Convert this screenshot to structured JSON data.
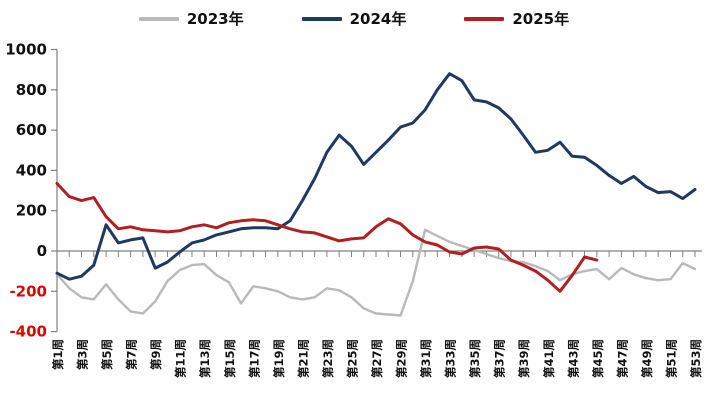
{
  "legend": {
    "items": [
      {
        "label": "2023年",
        "color": "#b9b9b9"
      },
      {
        "label": "2024年",
        "color": "#1f3864"
      },
      {
        "label": "2025年",
        "color": "#b02020"
      }
    ]
  },
  "chart_data": {
    "type": "line",
    "title": "",
    "xlabel": "",
    "ylabel": "",
    "x_unit": "week",
    "x_count": 53,
    "x_tick_labels": [
      "第1周",
      "第3周",
      "第5周",
      "第7周",
      "第9周",
      "第11周",
      "第13周",
      "第15周",
      "第17周",
      "第19周",
      "第21周",
      "第23周",
      "第25周",
      "第27周",
      "第29周",
      "第31周",
      "第33周",
      "第35周",
      "第37周",
      "第39周",
      "第41周",
      "第43周",
      "第45周",
      "第47周",
      "第49周",
      "第51周",
      "第53周"
    ],
    "x_tick_step": 2,
    "ylim": [
      -400,
      1000
    ],
    "y_tick_step": 200,
    "y_tick_labels": [
      "-400",
      "-200",
      "0",
      "200",
      "400",
      "600",
      "800",
      "1000"
    ],
    "grid": false,
    "legend_position": "top",
    "axis_color": "#808080",
    "tick_label_color": "#111111",
    "negative_tick_label_color": "#e00000",
    "series": [
      {
        "name": "2023年",
        "color": "#b9b9b9",
        "width": 2.4,
        "values": [
          -115,
          -185,
          -230,
          -240,
          -165,
          -240,
          -300,
          -310,
          -250,
          -150,
          -95,
          -70,
          -65,
          -120,
          -155,
          -260,
          -175,
          -185,
          -200,
          -230,
          -240,
          -230,
          -185,
          -195,
          -230,
          -285,
          -310,
          -315,
          -320,
          -150,
          105,
          75,
          45,
          25,
          5,
          -15,
          -35,
          -50,
          -55,
          -75,
          -100,
          -145,
          -115,
          -100,
          -90,
          -140,
          -85,
          -115,
          -135,
          -145,
          -140,
          -60,
          -90
        ]
      },
      {
        "name": "2024年",
        "color": "#1f3864",
        "width": 3,
        "values": [
          -110,
          -140,
          -125,
          -70,
          130,
          40,
          55,
          65,
          -85,
          -55,
          -5,
          40,
          55,
          80,
          95,
          110,
          115,
          115,
          110,
          150,
          250,
          360,
          490,
          575,
          520,
          430,
          490,
          550,
          615,
          635,
          700,
          800,
          880,
          845,
          750,
          740,
          710,
          655,
          575,
          490,
          500,
          540,
          470,
          465,
          425,
          375,
          335,
          370,
          320,
          290,
          295,
          260,
          305
        ]
      },
      {
        "name": "2025年",
        "color": "#b02020",
        "width": 3,
        "values": [
          335,
          270,
          250,
          265,
          170,
          110,
          120,
          105,
          100,
          95,
          100,
          120,
          130,
          115,
          140,
          150,
          155,
          150,
          130,
          110,
          95,
          90,
          70,
          50,
          60,
          65,
          120,
          160,
          135,
          80,
          45,
          30,
          -5,
          -15,
          15,
          20,
          10,
          -45,
          -70,
          -100,
          -145,
          -200,
          -120,
          -30,
          -45
        ]
      }
    ]
  }
}
